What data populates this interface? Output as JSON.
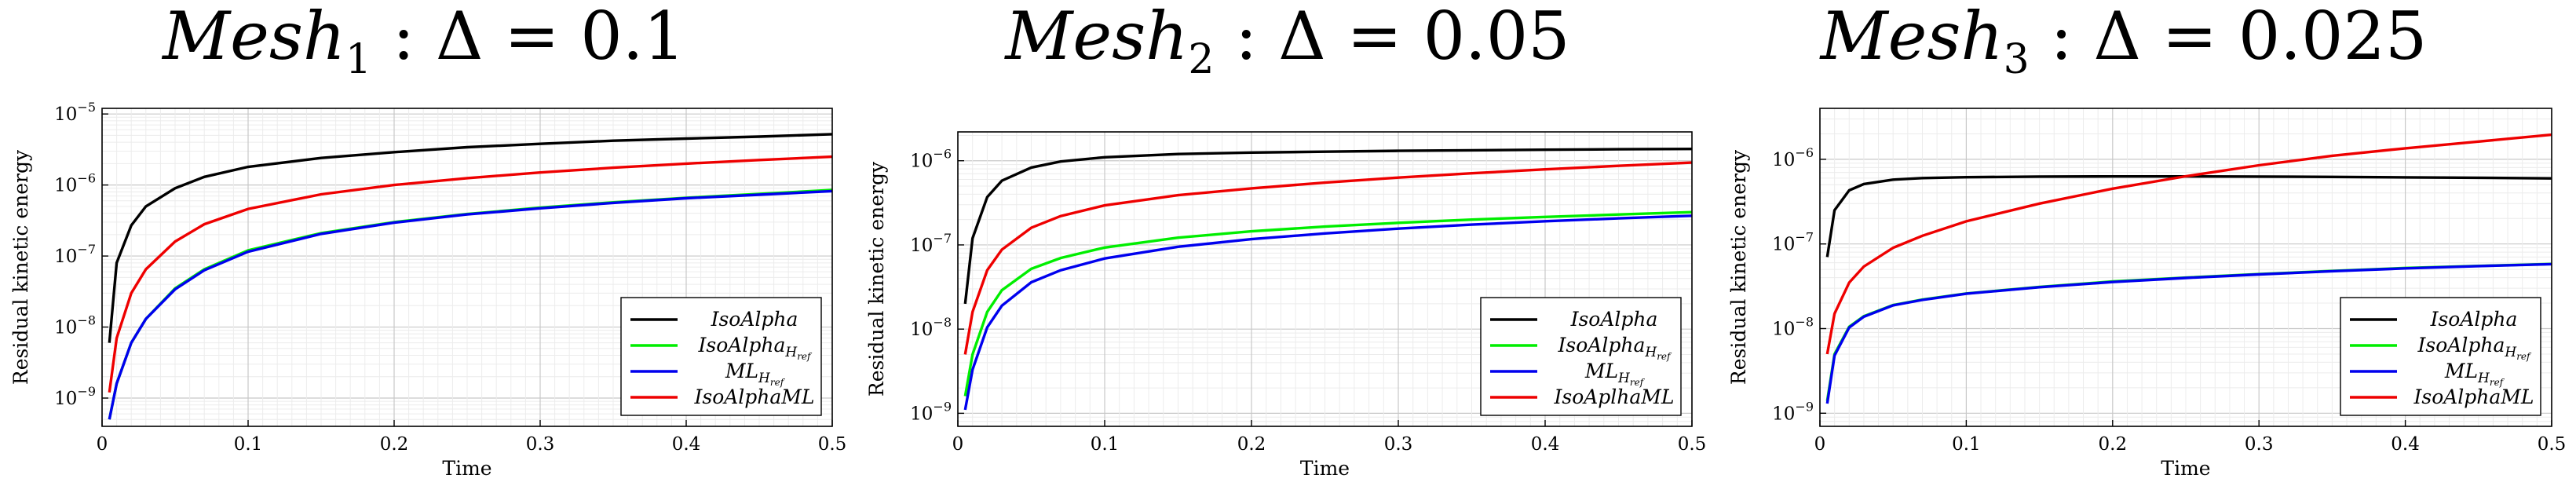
{
  "chart_data": [
    {
      "type": "line",
      "title": {
        "base": "Mesh",
        "sub": "1",
        "rest": " : Δ = 0.1"
      },
      "xlabel": "Time",
      "ylabel": "Residual kinetic energy",
      "xlim": [
        0,
        0.5
      ],
      "ylim": [
        4e-10,
        1.2e-05
      ],
      "yscale": "log",
      "grid": true,
      "legend_position": "bottom-right",
      "x_ticks": [
        "0",
        "0.1",
        "0.2",
        "0.3",
        "0.4",
        "0.5"
      ],
      "y_ticks": [
        {
          "value": 1e-09,
          "base": "10",
          "exp": "−9"
        },
        {
          "value": 1e-08,
          "base": "10",
          "exp": "−8"
        },
        {
          "value": 1e-07,
          "base": "10",
          "exp": "−7"
        },
        {
          "value": 1e-06,
          "base": "10",
          "exp": "−6"
        },
        {
          "value": 1e-05,
          "base": "10",
          "exp": "−5"
        }
      ],
      "series": [
        {
          "name": "IsoAlpha",
          "sub": "",
          "color": "#000000",
          "x": [
            0.005,
            0.01,
            0.02,
            0.03,
            0.05,
            0.07,
            0.1,
            0.15,
            0.2,
            0.25,
            0.3,
            0.35,
            0.4,
            0.45,
            0.5
          ],
          "y": [
            6e-09,
            8e-08,
            2.7e-07,
            5e-07,
            9e-07,
            1.3e-06,
            1.8e-06,
            2.4e-06,
            2.9e-06,
            3.4e-06,
            3.8e-06,
            4.2e-06,
            4.5e-06,
            4.8e-06,
            5.2e-06
          ]
        },
        {
          "name": "IsoAlpha",
          "sub": "H",
          "subsub": "ref",
          "color": "#00ee00",
          "x": [
            0.005,
            0.01,
            0.02,
            0.03,
            0.05,
            0.07,
            0.1,
            0.15,
            0.2,
            0.25,
            0.3,
            0.35,
            0.4,
            0.45,
            0.5
          ],
          "y": [
            5e-10,
            1.6e-09,
            6e-09,
            1.3e-08,
            3.5e-08,
            6.5e-08,
            1.2e-07,
            2.1e-07,
            3e-07,
            3.9e-07,
            4.8e-07,
            5.7e-07,
            6.6e-07,
            7.5e-07,
            8.5e-07
          ]
        },
        {
          "name": "ML",
          "sub": "H",
          "subsub": "ref",
          "color": "#0000ee",
          "x": [
            0.005,
            0.01,
            0.02,
            0.03,
            0.05,
            0.07,
            0.1,
            0.15,
            0.2,
            0.25,
            0.3,
            0.35,
            0.4,
            0.45,
            0.5
          ],
          "y": [
            5e-10,
            1.6e-09,
            6e-09,
            1.3e-08,
            3.4e-08,
            6.3e-08,
            1.15e-07,
            2.05e-07,
            2.95e-07,
            3.85e-07,
            4.7e-07,
            5.6e-07,
            6.5e-07,
            7.3e-07,
            8.2e-07
          ]
        },
        {
          "name": "IsoAlphaML",
          "sub": "",
          "color": "#ee0000",
          "x": [
            0.005,
            0.01,
            0.02,
            0.03,
            0.05,
            0.07,
            0.1,
            0.15,
            0.2,
            0.25,
            0.3,
            0.35,
            0.4,
            0.45,
            0.5
          ],
          "y": [
            1.2e-09,
            7e-09,
            3e-08,
            6.5e-08,
            1.6e-07,
            2.8e-07,
            4.6e-07,
            7.4e-07,
            1e-06,
            1.25e-06,
            1.5e-06,
            1.75e-06,
            2e-06,
            2.25e-06,
            2.5e-06
          ]
        }
      ]
    },
    {
      "type": "line",
      "title": {
        "base": "Mesh",
        "sub": "2",
        "rest": " : Δ = 0.05"
      },
      "xlabel": "Time",
      "ylabel": "Residual kinetic energy",
      "xlim": [
        0,
        0.5
      ],
      "ylim": [
        7e-10,
        2.2e-06
      ],
      "yscale": "log",
      "grid": true,
      "legend_position": "bottom-right",
      "x_ticks": [
        "0",
        "0.1",
        "0.2",
        "0.3",
        "0.4",
        "0.5"
      ],
      "y_ticks": [
        {
          "value": 1e-09,
          "base": "10",
          "exp": "−9"
        },
        {
          "value": 1e-08,
          "base": "10",
          "exp": "−8"
        },
        {
          "value": 1e-07,
          "base": "10",
          "exp": "−7"
        },
        {
          "value": 1e-06,
          "base": "10",
          "exp": "−6"
        }
      ],
      "series": [
        {
          "name": "IsoAlpha",
          "sub": "",
          "color": "#000000",
          "x": [
            0.005,
            0.01,
            0.02,
            0.03,
            0.05,
            0.07,
            0.1,
            0.15,
            0.2,
            0.25,
            0.3,
            0.35,
            0.4,
            0.45,
            0.5
          ],
          "y": [
            2e-08,
            1.2e-07,
            3.7e-07,
            5.8e-07,
            8.3e-07,
            9.8e-07,
            1.1e-06,
            1.2e-06,
            1.25e-06,
            1.28e-06,
            1.31e-06,
            1.33e-06,
            1.35e-06,
            1.37e-06,
            1.38e-06
          ]
        },
        {
          "name": "IsoAlpha",
          "sub": "H",
          "subsub": "ref",
          "color": "#00ee00",
          "x": [
            0.005,
            0.01,
            0.02,
            0.03,
            0.05,
            0.07,
            0.1,
            0.15,
            0.2,
            0.25,
            0.3,
            0.35,
            0.4,
            0.45,
            0.5
          ],
          "y": [
            1.6e-09,
            5e-09,
            1.6e-08,
            2.9e-08,
            5.2e-08,
            7e-08,
            9.3e-08,
            1.22e-07,
            1.45e-07,
            1.65e-07,
            1.83e-07,
            2e-07,
            2.15e-07,
            2.3e-07,
            2.45e-07
          ]
        },
        {
          "name": "ML",
          "sub": "H",
          "subsub": "ref",
          "color": "#0000ee",
          "x": [
            0.005,
            0.01,
            0.02,
            0.03,
            0.05,
            0.07,
            0.1,
            0.15,
            0.2,
            0.25,
            0.3,
            0.35,
            0.4,
            0.45,
            0.5
          ],
          "y": [
            1.1e-09,
            3.3e-09,
            1.05e-08,
            1.9e-08,
            3.6e-08,
            5e-08,
            6.9e-08,
            9.5e-08,
            1.17e-07,
            1.37e-07,
            1.56e-07,
            1.74e-07,
            1.91e-07,
            2.07e-07,
            2.22e-07
          ]
        },
        {
          "name": "IsoAplhaML",
          "sub": "",
          "color": "#ee0000",
          "x": [
            0.005,
            0.01,
            0.02,
            0.03,
            0.05,
            0.07,
            0.1,
            0.15,
            0.2,
            0.25,
            0.3,
            0.35,
            0.4,
            0.45,
            0.5
          ],
          "y": [
            5e-09,
            1.6e-08,
            5e-08,
            8.8e-08,
            1.6e-07,
            2.2e-07,
            2.95e-07,
            3.9e-07,
            4.7e-07,
            5.5e-07,
            6.3e-07,
            7.1e-07,
            7.9e-07,
            8.7e-07,
            9.5e-07
          ]
        }
      ]
    },
    {
      "type": "line",
      "title": {
        "base": "Mesh",
        "sub": "3",
        "rest": " : Δ = 0.025"
      },
      "xlabel": "Time",
      "ylabel": "Residual kinetic energy",
      "xlim": [
        0,
        0.5
      ],
      "ylim": [
        7e-10,
        4e-06
      ],
      "yscale": "log",
      "grid": true,
      "legend_position": "bottom-right",
      "x_ticks": [
        "0",
        "0.1",
        "0.2",
        "0.3",
        "0.4",
        "0.5"
      ],
      "y_ticks": [
        {
          "value": 1e-09,
          "base": "10",
          "exp": "−9"
        },
        {
          "value": 1e-08,
          "base": "10",
          "exp": "−8"
        },
        {
          "value": 1e-07,
          "base": "10",
          "exp": "−7"
        },
        {
          "value": 1e-06,
          "base": "10",
          "exp": "−6"
        }
      ],
      "series": [
        {
          "name": "IsoAlpha",
          "sub": "",
          "color": "#000000",
          "x": [
            0.005,
            0.01,
            0.02,
            0.03,
            0.05,
            0.07,
            0.1,
            0.15,
            0.2,
            0.25,
            0.3,
            0.35,
            0.4,
            0.45,
            0.5
          ],
          "y": [
            7e-08,
            2.5e-07,
            4.3e-07,
            5.1e-07,
            5.75e-07,
            6e-07,
            6.15e-07,
            6.25e-07,
            6.28e-07,
            6.28e-07,
            6.25e-07,
            6.2e-07,
            6.12e-07,
            6.05e-07,
            5.95e-07
          ]
        },
        {
          "name": "IsoAlpha",
          "sub": "H",
          "subsub": "ref",
          "color": "#00ee00",
          "x": [
            0.005,
            0.01,
            0.02,
            0.03,
            0.05,
            0.07,
            0.1,
            0.15,
            0.2,
            0.25,
            0.3,
            0.35,
            0.4,
            0.45,
            0.5
          ],
          "y": [
            1.4e-09,
            5e-09,
            1.05e-08,
            1.4e-08,
            1.9e-08,
            2.2e-08,
            2.6e-08,
            3.1e-08,
            3.6e-08,
            4e-08,
            4.4e-08,
            4.8e-08,
            5.2e-08,
            5.5e-08,
            5.8e-08
          ]
        },
        {
          "name": "ML",
          "sub": "H",
          "subsub": "ref",
          "color": "#0000ee",
          "x": [
            0.005,
            0.01,
            0.02,
            0.03,
            0.05,
            0.07,
            0.1,
            0.15,
            0.2,
            0.25,
            0.3,
            0.35,
            0.4,
            0.45,
            0.5
          ],
          "y": [
            1.3e-09,
            4.8e-09,
            1.03e-08,
            1.38e-08,
            1.88e-08,
            2.18e-08,
            2.58e-08,
            3.08e-08,
            3.55e-08,
            3.97e-08,
            4.37e-08,
            4.77e-08,
            5.15e-08,
            5.47e-08,
            5.78e-08
          ]
        },
        {
          "name": "IsoAlphaML",
          "sub": "",
          "color": "#ee0000",
          "x": [
            0.005,
            0.01,
            0.02,
            0.03,
            0.05,
            0.07,
            0.1,
            0.15,
            0.2,
            0.25,
            0.3,
            0.35,
            0.4,
            0.45,
            0.5
          ],
          "y": [
            5e-09,
            1.5e-08,
            3.5e-08,
            5.4e-08,
            9e-08,
            1.25e-07,
            1.85e-07,
            3e-07,
            4.5e-07,
            6.3e-07,
            8.5e-07,
            1.1e-06,
            1.35e-06,
            1.62e-06,
            1.95e-06
          ]
        }
      ]
    }
  ]
}
